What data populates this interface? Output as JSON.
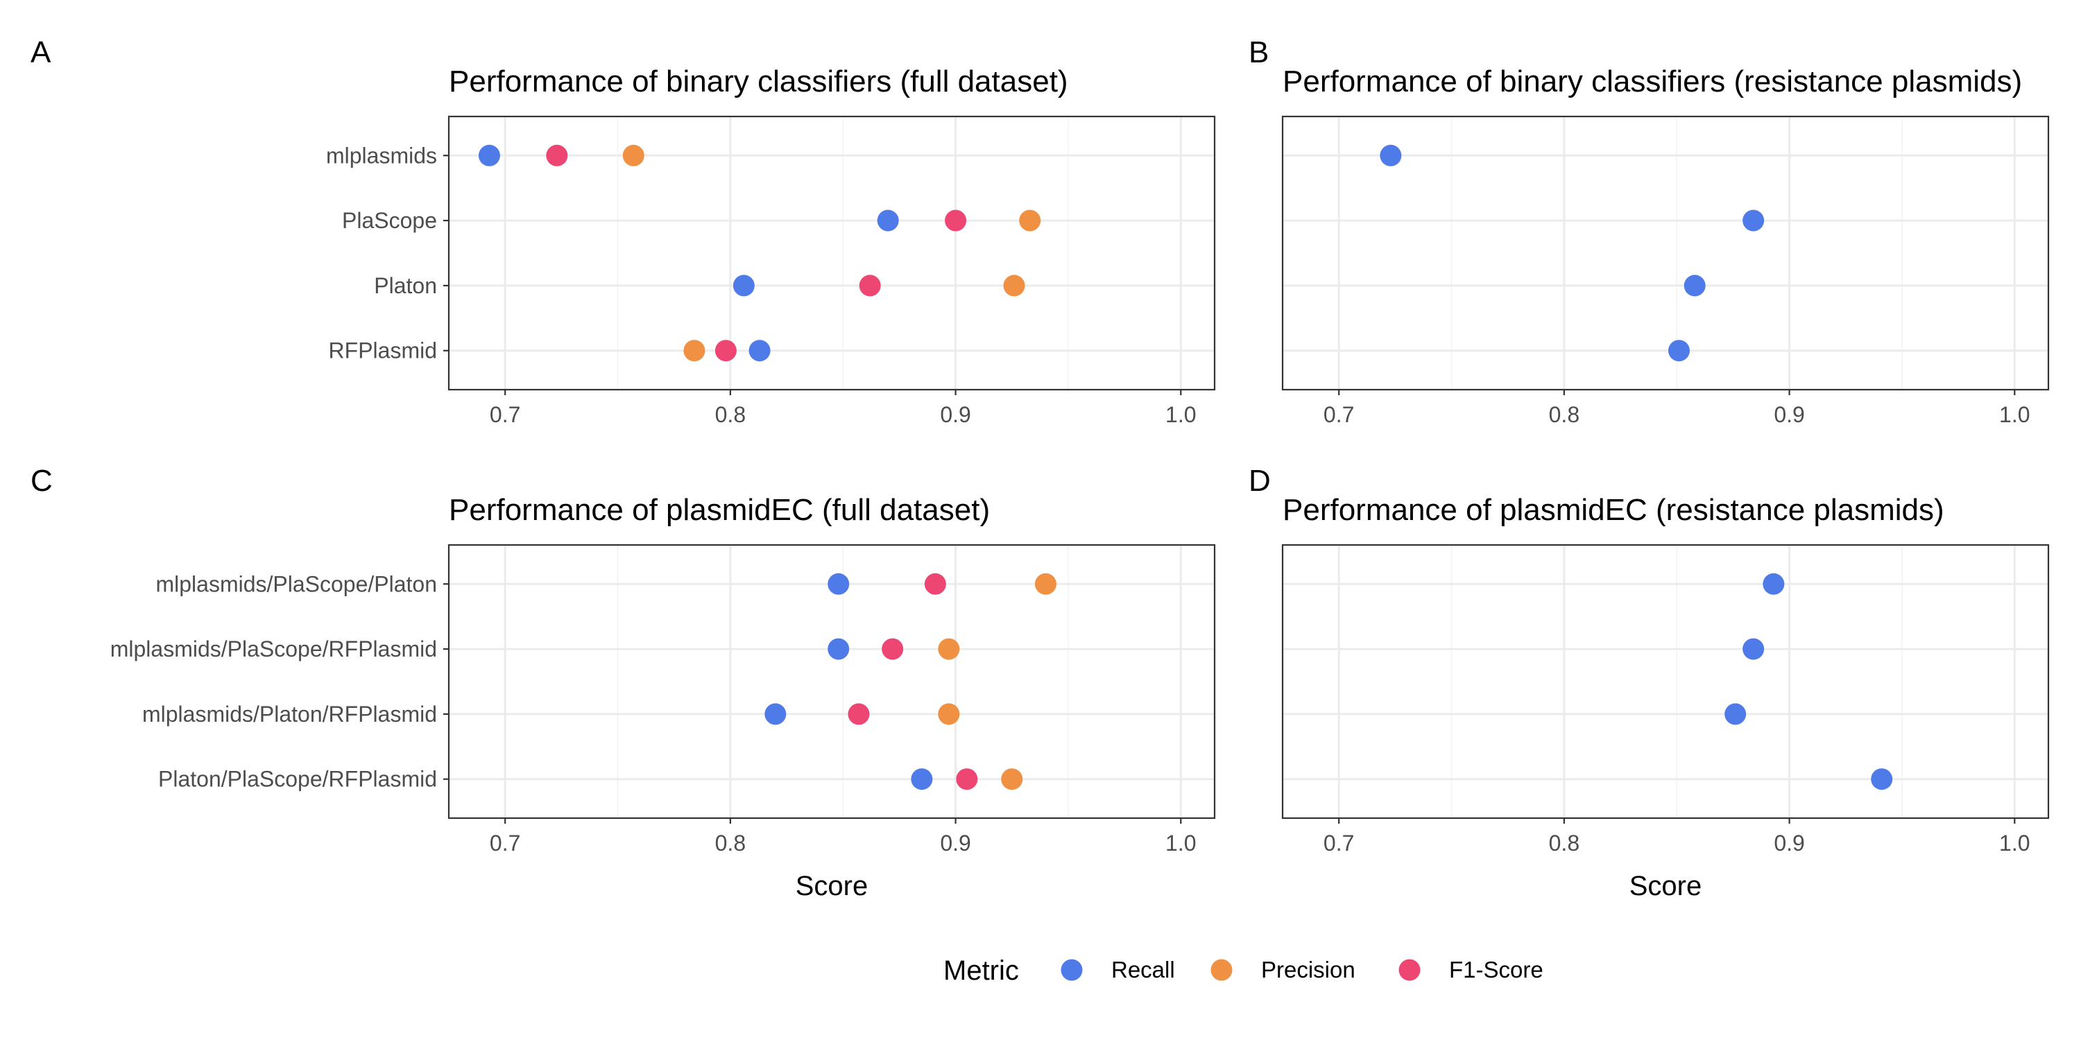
{
  "legend": {
    "title": "Metric",
    "items": [
      {
        "label": "Recall",
        "color": "#4f7be8"
      },
      {
        "label": "Precision",
        "color": "#f09043"
      },
      {
        "label": "F1-Score",
        "color": "#ed4673"
      }
    ]
  },
  "colors": {
    "Recall": "#4f7be8",
    "Precision": "#f09043",
    "F1-Score": "#ed4673"
  },
  "chart_data": [
    {
      "panel": "A",
      "type": "scatter",
      "title": "Performance of binary classifiers (full dataset)",
      "xlabel": "",
      "ylabel": "",
      "xlim": [
        0.675,
        1.015
      ],
      "xticks": [
        "0.7",
        "0.8",
        "0.9",
        "1.0"
      ],
      "xtick_values": [
        0.7,
        0.8,
        0.9,
        1.0
      ],
      "grid": true,
      "categories": [
        "mlplasmids",
        "PlaScope",
        "Platon",
        "RFPlasmid"
      ],
      "series": [
        {
          "name": "Recall",
          "values": [
            0.693,
            0.87,
            0.806,
            0.813
          ]
        },
        {
          "name": "Precision",
          "values": [
            0.757,
            0.933,
            0.926,
            0.784
          ]
        },
        {
          "name": "F1-Score",
          "values": [
            0.723,
            0.9,
            0.862,
            0.798
          ]
        }
      ]
    },
    {
      "panel": "B",
      "type": "scatter",
      "title": "Performance of binary classifiers (resistance plasmids)",
      "xlabel": "",
      "ylabel": "",
      "xlim": [
        0.675,
        1.015
      ],
      "xticks": [
        "0.7",
        "0.8",
        "0.9",
        "1.0"
      ],
      "xtick_values": [
        0.7,
        0.8,
        0.9,
        1.0
      ],
      "grid": true,
      "categories": [
        "mlplasmids",
        "PlaScope",
        "Platon",
        "RFPlasmid"
      ],
      "series": [
        {
          "name": "Recall",
          "values": [
            0.723,
            0.884,
            0.858,
            0.851
          ]
        }
      ]
    },
    {
      "panel": "C",
      "type": "scatter",
      "title": "Performance of plasmidEC (full dataset)",
      "xlabel": "Score",
      "ylabel": "",
      "xlim": [
        0.675,
        1.015
      ],
      "xticks": [
        "0.7",
        "0.8",
        "0.9",
        "1.0"
      ],
      "xtick_values": [
        0.7,
        0.8,
        0.9,
        1.0
      ],
      "grid": true,
      "categories": [
        "mlplasmids/PlaScope/Platon",
        "mlplasmids/PlaScope/RFPlasmid",
        "mlplasmids/Platon/RFPlasmid",
        "Platon/PlaScope/RFPlasmid"
      ],
      "series": [
        {
          "name": "Recall",
          "values": [
            0.848,
            0.848,
            0.82,
            0.885
          ]
        },
        {
          "name": "Precision",
          "values": [
            0.94,
            0.897,
            0.897,
            0.925
          ]
        },
        {
          "name": "F1-Score",
          "values": [
            0.891,
            0.872,
            0.857,
            0.905
          ]
        }
      ]
    },
    {
      "panel": "D",
      "type": "scatter",
      "title": "Performance of plasmidEC (resistance plasmids)",
      "xlabel": "Score",
      "ylabel": "",
      "xlim": [
        0.675,
        1.015
      ],
      "xticks": [
        "0.7",
        "0.8",
        "0.9",
        "1.0"
      ],
      "xtick_values": [
        0.7,
        0.8,
        0.9,
        1.0
      ],
      "grid": true,
      "categories": [
        "mlplasmids/PlaScope/Platon",
        "mlplasmids/PlaScope/RFPlasmid",
        "mlplasmids/Platon/RFPlasmid",
        "Platon/PlaScope/RFPlasmid"
      ],
      "series": [
        {
          "name": "Recall",
          "values": [
            0.893,
            0.884,
            0.876,
            0.941
          ]
        }
      ]
    }
  ]
}
